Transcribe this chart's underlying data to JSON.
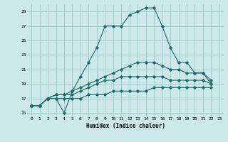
{
  "xlabel": "Humidex (Indice chaleur)",
  "bg_color": "#cce8e8",
  "grid_color": "#a0cccc",
  "line_color": "#1a6b6b",
  "xlim": [
    -0.5,
    23.5
  ],
  "ylim": [
    14.5,
    30
  ],
  "yticks": [
    15,
    17,
    19,
    21,
    23,
    25,
    27,
    29
  ],
  "xticks": [
    0,
    1,
    2,
    3,
    4,
    5,
    6,
    7,
    8,
    9,
    10,
    11,
    12,
    13,
    14,
    15,
    16,
    17,
    18,
    19,
    20,
    21,
    22,
    23
  ],
  "series": [
    {
      "x": [
        0,
        1,
        2,
        3,
        4,
        5,
        6,
        7,
        8,
        9,
        10,
        11,
        12,
        13,
        14,
        15,
        16,
        17,
        18,
        19,
        20,
        21,
        22
      ],
      "y": [
        16,
        16,
        17,
        17,
        15,
        18,
        20,
        22,
        24,
        27,
        27,
        27,
        28.5,
        29,
        29.5,
        29.5,
        27,
        24,
        22,
        22,
        20.5,
        20.5,
        19
      ]
    },
    {
      "x": [
        0,
        1,
        2,
        3,
        4,
        5,
        6,
        7,
        8,
        9,
        10,
        11,
        12,
        13,
        14,
        15,
        16,
        17,
        18,
        19,
        20,
        21,
        22
      ],
      "y": [
        16,
        16,
        17,
        17.5,
        17.5,
        18,
        18.5,
        19,
        19.5,
        20,
        20.5,
        21,
        21.5,
        22,
        22,
        22,
        21.5,
        21,
        21,
        20.5,
        20.5,
        20.5,
        19.5
      ]
    },
    {
      "x": [
        0,
        1,
        2,
        3,
        4,
        5,
        6,
        7,
        8,
        9,
        10,
        11,
        12,
        13,
        14,
        15,
        16,
        17,
        18,
        19,
        20,
        21,
        22
      ],
      "y": [
        16,
        16,
        17,
        17.5,
        17.5,
        17.5,
        18,
        18.5,
        19,
        19.5,
        19.5,
        20,
        20,
        20,
        20,
        20,
        20,
        19.5,
        19.5,
        19.5,
        19.5,
        19.5,
        19
      ]
    },
    {
      "x": [
        0,
        1,
        2,
        3,
        4,
        5,
        6,
        7,
        8,
        9,
        10,
        11,
        12,
        13,
        14,
        15,
        16,
        17,
        18,
        19,
        20,
        21,
        22
      ],
      "y": [
        16,
        16,
        17,
        17,
        17,
        17,
        17,
        17.5,
        17.5,
        17.5,
        18,
        18,
        18,
        18,
        18,
        18.5,
        18.5,
        18.5,
        18.5,
        18.5,
        18.5,
        18.5,
        18.5
      ]
    }
  ]
}
